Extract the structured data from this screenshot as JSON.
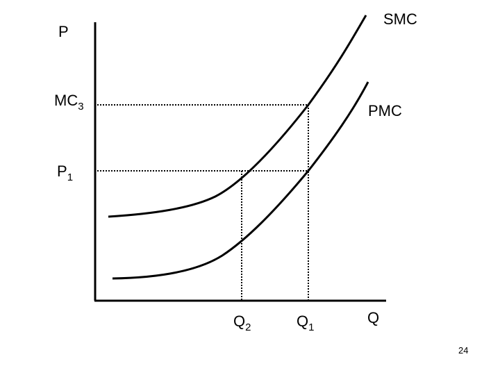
{
  "labels": {
    "price_axis": "P",
    "mc3_main": "MC",
    "mc3_sub": "3",
    "p1_main": "P",
    "p1_sub": "1",
    "smc": "SMC",
    "pmc": "PMC",
    "q2_main": "Q",
    "q2_sub": "2",
    "q1_main": "Q",
    "q1_sub": "1",
    "quantity_axis": "Q"
  },
  "page_number": "24",
  "colors": {
    "ink": "#000000",
    "background": "#ffffff"
  }
}
